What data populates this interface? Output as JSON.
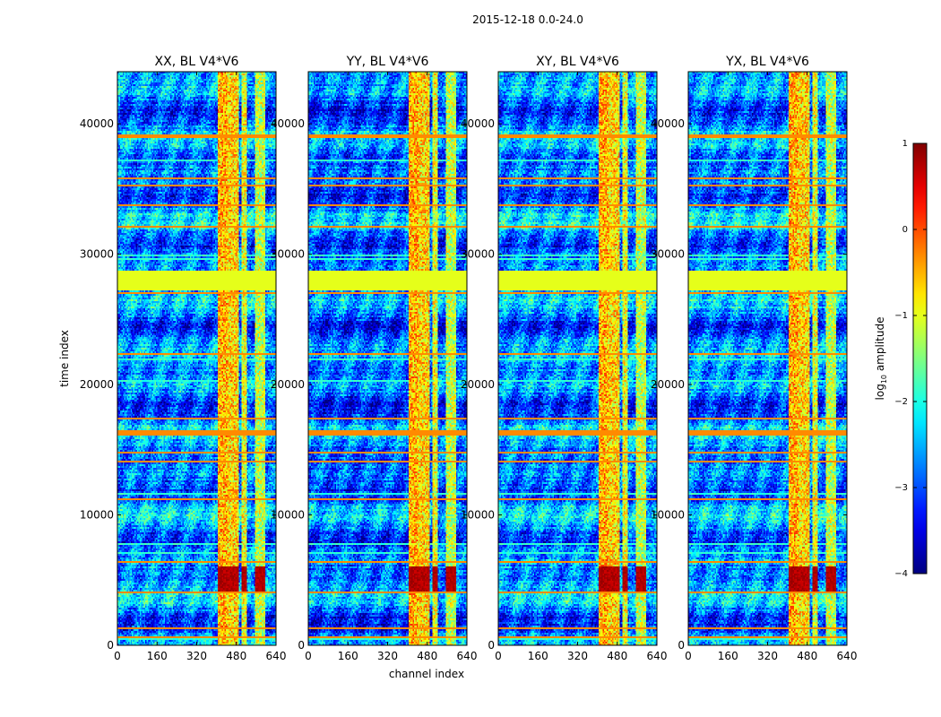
{
  "chart_data": {
    "type": "heatmap",
    "suptitle": "2015-12-18 0.0-24.0",
    "xlabel": "channel index",
    "ylabel": "time index",
    "xlim": [
      0,
      640
    ],
    "ylim": [
      0,
      44000
    ],
    "xticks": [
      0,
      160,
      320,
      480,
      640
    ],
    "yticks": [
      0,
      10000,
      20000,
      30000,
      40000
    ],
    "panels": [
      {
        "title": "XX, BL V4*V6",
        "pol": "XX"
      },
      {
        "title": "YY, BL V4*V6",
        "pol": "YY"
      },
      {
        "title": "XY, BL V4*V6",
        "pol": "XY"
      },
      {
        "title": "YX, BL V4*V6",
        "pol": "YX"
      }
    ],
    "colorbar": {
      "label_prefix": "log",
      "label_sub": "10",
      "label_suffix": " amplitude",
      "range": [
        -4,
        1
      ],
      "ticks": [
        1,
        0,
        -1,
        -2,
        -3,
        -4
      ],
      "tick_labels": [
        "1",
        "0",
        "−1",
        "−2",
        "−3",
        "−4"
      ],
      "colormap": "jet"
    },
    "flagged_rows": [
      {
        "t0": 27200,
        "t1": 28800,
        "value": -1.0
      },
      {
        "t0": 38900,
        "t1": 39200,
        "value": -0.3
      },
      {
        "t0": 16100,
        "t1": 16500,
        "value": -0.3
      }
    ],
    "rfi_channels": [
      {
        "c0": 405,
        "c1": 440,
        "value": -0.5
      },
      {
        "c0": 445,
        "c1": 490,
        "value": -0.7
      },
      {
        "c0": 500,
        "c1": 520,
        "value": -1.0
      },
      {
        "c0": 555,
        "c1": 595,
        "value": -1.2
      }
    ]
  }
}
